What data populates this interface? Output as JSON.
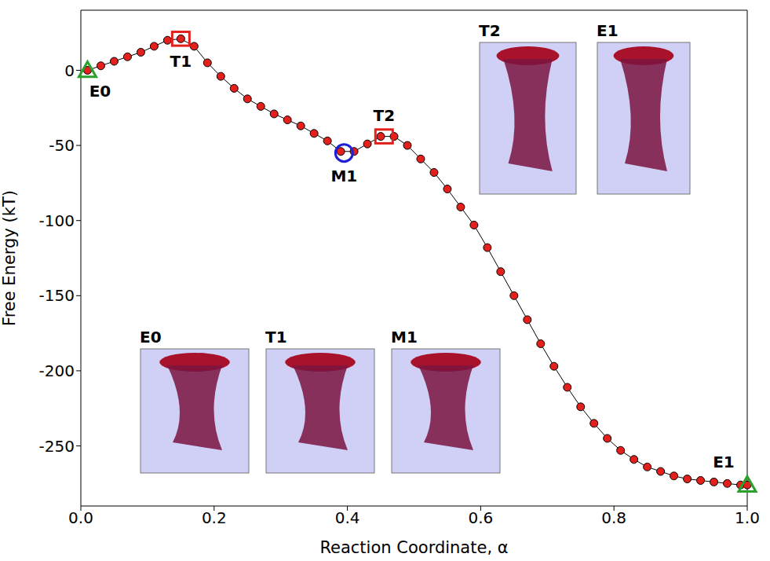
{
  "chart_data": {
    "type": "line",
    "x_label": "Reaction Coordinate, α",
    "y_label": "Free Energy (kT)",
    "xlim": [
      0,
      1
    ],
    "xticks": [
      {
        "value": 0,
        "label": "0.0"
      },
      {
        "value": 0.2,
        "label": "0.2"
      },
      {
        "value": 0.4,
        "label": "0.4"
      },
      {
        "value": 0.6,
        "label": "0.6"
      },
      {
        "value": 0.8,
        "label": "0.8"
      },
      {
        "value": 1,
        "label": "1.0"
      }
    ],
    "ylim": [
      -290,
      40
    ],
    "yticks": [
      -250,
      -200,
      -150,
      -100,
      -50,
      0
    ],
    "grid": false,
    "color": "#e3201b",
    "marker": "circle",
    "line_style": "solid",
    "x": [
      0.01,
      0.03,
      0.05,
      0.07,
      0.09,
      0.11,
      0.13,
      0.15,
      0.17,
      0.19,
      0.21,
      0.23,
      0.25,
      0.27,
      0.29,
      0.31,
      0.33,
      0.35,
      0.37,
      0.39,
      0.41,
      0.43,
      0.45,
      0.47,
      0.49,
      0.51,
      0.53,
      0.55,
      0.57,
      0.59,
      0.61,
      0.63,
      0.65,
      0.67,
      0.69,
      0.71,
      0.73,
      0.75,
      0.77,
      0.79,
      0.81,
      0.83,
      0.85,
      0.87,
      0.89,
      0.91,
      0.93,
      0.95,
      0.97,
      0.99,
      1.0
    ],
    "values": [
      0,
      3,
      6,
      9,
      12,
      16,
      20,
      21,
      16,
      5,
      -4,
      -12,
      -19,
      -24,
      -29,
      -33,
      -37,
      -42,
      -47,
      -54,
      -54,
      -49,
      -44,
      -44,
      -50,
      -59,
      -68,
      -79,
      -91,
      -103,
      -118,
      -134,
      -150,
      -166,
      -182,
      -197,
      -211,
      -224,
      -235,
      -245,
      -253,
      -259,
      -264,
      -267,
      -270,
      -272,
      -273,
      -274,
      -275,
      -276,
      -276
    ],
    "annotations": [
      {
        "label": "E0",
        "x": 0.01,
        "y": 0,
        "marker": "triangle",
        "color": "#2ca02c"
      },
      {
        "label": "T1",
        "x": 0.15,
        "y": 21,
        "marker": "square",
        "color": "#e3201b"
      },
      {
        "label": "M1",
        "x": 0.395,
        "y": -55,
        "marker": "circle",
        "color": "#1f1fd8"
      },
      {
        "label": "T2",
        "x": 0.455,
        "y": -44,
        "marker": "square",
        "color": "#e3201b"
      },
      {
        "label": "E1",
        "x": 1.0,
        "y": -276,
        "marker": "triangle",
        "color": "#2ca02c"
      }
    ],
    "inset_labels": [
      "T2",
      "E1",
      "E0",
      "T1",
      "M1"
    ]
  }
}
